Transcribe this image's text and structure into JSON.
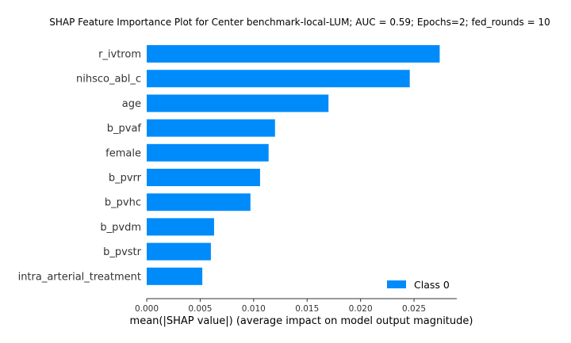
{
  "chart_data": {
    "type": "bar",
    "orientation": "horizontal",
    "title": "SHAP Feature Importance Plot for Center benchmark-local-LUM; AUC = 0.59; Epochs=2; fed_rounds = 10",
    "xlabel": "mean(|SHAP value|) (average impact on model output magnitude)",
    "ylabel": "",
    "categories": [
      "r_ivtrom",
      "nihsco_abl_c",
      "age",
      "b_pvaf",
      "female",
      "b_pvrr",
      "b_pvhc",
      "b_pvdm",
      "b_pvstr",
      "intra_arterial_treatment"
    ],
    "series": [
      {
        "name": "Class 0",
        "color": "#008bfb",
        "values": [
          0.0274,
          0.0246,
          0.017,
          0.012,
          0.0114,
          0.0106,
          0.0097,
          0.0063,
          0.006,
          0.0052
        ]
      }
    ],
    "xlim": [
      0,
      0.029
    ],
    "xticks": [
      0.0,
      0.005,
      0.01,
      0.015,
      0.02,
      0.025
    ],
    "xtick_labels": [
      "0.000",
      "0.005",
      "0.010",
      "0.015",
      "0.020",
      "0.025"
    ],
    "legend_position": "bottom-right",
    "grid": false
  }
}
